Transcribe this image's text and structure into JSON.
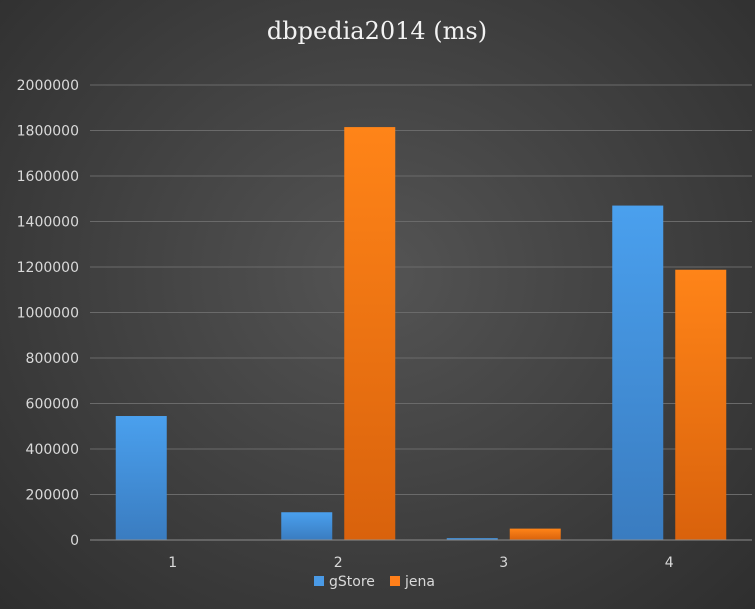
{
  "chart_data": {
    "type": "bar",
    "title": "dbpedia2014 (ms)",
    "xlabel": "",
    "ylabel": "",
    "categories": [
      "1",
      "2",
      "3",
      "4"
    ],
    "series": [
      {
        "name": "gStore",
        "values": [
          545000,
          122000,
          8000,
          1470000
        ],
        "color": "#4a9ae6"
      },
      {
        "name": "jena",
        "values": [
          1000,
          1815000,
          50000,
          1188000
        ],
        "color": "#ff7f1a"
      }
    ],
    "ylim": [
      0,
      2000000
    ],
    "yticks": [
      0,
      200000,
      400000,
      600000,
      800000,
      1000000,
      1200000,
      1400000,
      1600000,
      1800000,
      2000000
    ],
    "grid": true,
    "legend": "bottom"
  }
}
